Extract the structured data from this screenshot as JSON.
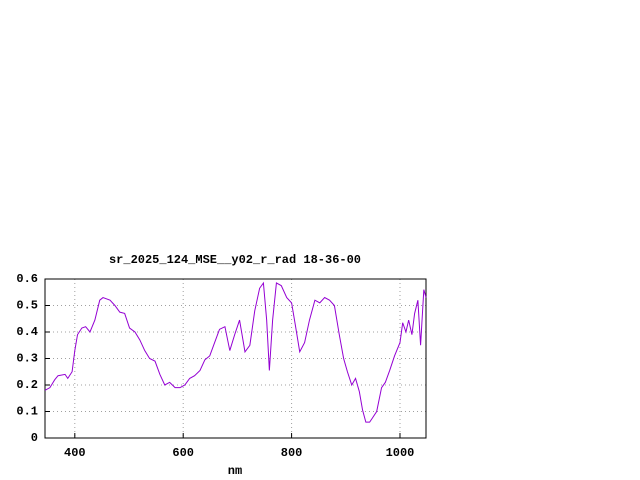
{
  "chart_data": {
    "type": "line",
    "title": "sr_2025_124_MSE__y02_r_rad 18-36-00",
    "x_label": "nm",
    "xlim": [
      345,
      1048
    ],
    "xticks": [
      400,
      600,
      800,
      1000
    ],
    "ylim": [
      0,
      0.6
    ],
    "yticks": [
      0,
      0.1,
      0.2,
      0.3,
      0.4,
      0.5,
      0.6
    ],
    "grid": true,
    "x": [
      345,
      354,
      363,
      369,
      382,
      387,
      395,
      400,
      405,
      413,
      420,
      428,
      437,
      446,
      452,
      465,
      474,
      483,
      492,
      501,
      511,
      520,
      529,
      538,
      548,
      557,
      566,
      575,
      585,
      594,
      603,
      612,
      621,
      631,
      640,
      649,
      658,
      667,
      677,
      686,
      695,
      704,
      714,
      723,
      732,
      741,
      748,
      754,
      759,
      765,
      772,
      781,
      791,
      800,
      807,
      815,
      824,
      833,
      843,
      852,
      861,
      870,
      879,
      888,
      896,
      903,
      911,
      918,
      925,
      931,
      937,
      944,
      949,
      957,
      966,
      973,
      981,
      990,
      1000,
      1005,
      1011,
      1016,
      1022,
      1027,
      1033,
      1038,
      1044,
      1048
    ],
    "series": [
      {
        "color": "#9400d3",
        "values": [
          0.18,
          0.19,
          0.22,
          0.235,
          0.24,
          0.225,
          0.25,
          0.33,
          0.39,
          0.415,
          0.42,
          0.4,
          0.445,
          0.52,
          0.53,
          0.52,
          0.5,
          0.475,
          0.47,
          0.415,
          0.4,
          0.37,
          0.33,
          0.3,
          0.29,
          0.24,
          0.2,
          0.21,
          0.19,
          0.19,
          0.2,
          0.225,
          0.235,
          0.255,
          0.295,
          0.31,
          0.36,
          0.41,
          0.42,
          0.33,
          0.39,
          0.445,
          0.325,
          0.35,
          0.48,
          0.565,
          0.585,
          0.445,
          0.255,
          0.445,
          0.585,
          0.575,
          0.53,
          0.51,
          0.425,
          0.325,
          0.36,
          0.445,
          0.52,
          0.51,
          0.53,
          0.52,
          0.5,
          0.39,
          0.3,
          0.25,
          0.2,
          0.225,
          0.175,
          0.105,
          0.06,
          0.06,
          0.075,
          0.1,
          0.19,
          0.21,
          0.255,
          0.31,
          0.36,
          0.435,
          0.4,
          0.445,
          0.39,
          0.47,
          0.52,
          0.35,
          0.56,
          0.53
        ]
      }
    ]
  }
}
